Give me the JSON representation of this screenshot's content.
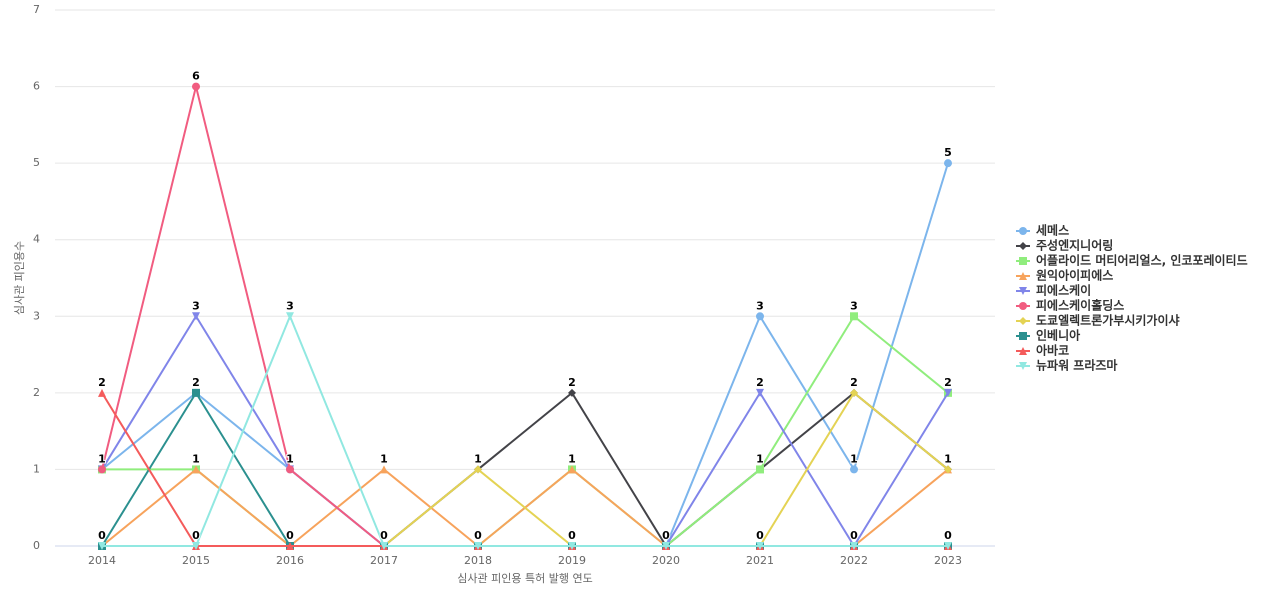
{
  "chart_data": {
    "type": "line",
    "xlabel": "심사관 피인용 특허 발행 연도",
    "ylabel": "심사관 피인용수",
    "categories": [
      "2014",
      "2015",
      "2016",
      "2017",
      "2018",
      "2019",
      "2020",
      "2021",
      "2022",
      "2023"
    ],
    "ylim": [
      0,
      7
    ],
    "yticks": [
      0,
      1,
      2,
      3,
      4,
      5,
      6,
      7
    ],
    "grid": true,
    "legend": "right",
    "series": [
      {
        "name": "세메스",
        "color": "#7cb5ec",
        "marker": "circle",
        "values": [
          1,
          2,
          1,
          0,
          0,
          0,
          0,
          3,
          1,
          5
        ]
      },
      {
        "name": "주성엔지니어링",
        "color": "#434348",
        "marker": "diamond",
        "values": [
          0,
          0,
          0,
          0,
          1,
          2,
          0,
          1,
          2,
          1
        ]
      },
      {
        "name": "어플라이드 머티어리얼스, 인코포레이티드",
        "color": "#90ed7d",
        "marker": "square",
        "values": [
          1,
          1,
          0,
          0,
          0,
          1,
          0,
          1,
          3,
          2
        ]
      },
      {
        "name": "원익아이피에스",
        "color": "#f7a35c",
        "marker": "triangle",
        "values": [
          0,
          1,
          0,
          1,
          0,
          1,
          0,
          0,
          0,
          1
        ]
      },
      {
        "name": "피에스케이",
        "color": "#8085e9",
        "marker": "triangle-down",
        "values": [
          1,
          3,
          1,
          0,
          0,
          0,
          0,
          2,
          0,
          2
        ]
      },
      {
        "name": "피에스케이홀딩스",
        "color": "#f15c80",
        "marker": "circle",
        "values": [
          1,
          6,
          1,
          0,
          0,
          0,
          0,
          0,
          0,
          0
        ]
      },
      {
        "name": "도쿄엘렉트론가부시키가이샤",
        "color": "#e4d354",
        "marker": "diamond",
        "values": [
          0,
          0,
          0,
          0,
          1,
          0,
          0,
          0,
          2,
          1
        ]
      },
      {
        "name": "인베니아",
        "color": "#2b908f",
        "marker": "square",
        "values": [
          0,
          2,
          0,
          0,
          0,
          0,
          0,
          0,
          0,
          0
        ]
      },
      {
        "name": "아바코",
        "color": "#f45b5b",
        "marker": "triangle",
        "values": [
          2,
          0,
          0,
          0,
          0,
          0,
          0,
          0,
          0,
          0
        ]
      },
      {
        "name": "뉴파워 프라즈마",
        "color": "#91e8e1",
        "marker": "triangle-down",
        "values": [
          0,
          0,
          3,
          0,
          0,
          0,
          0,
          0,
          0,
          0
        ]
      }
    ]
  }
}
